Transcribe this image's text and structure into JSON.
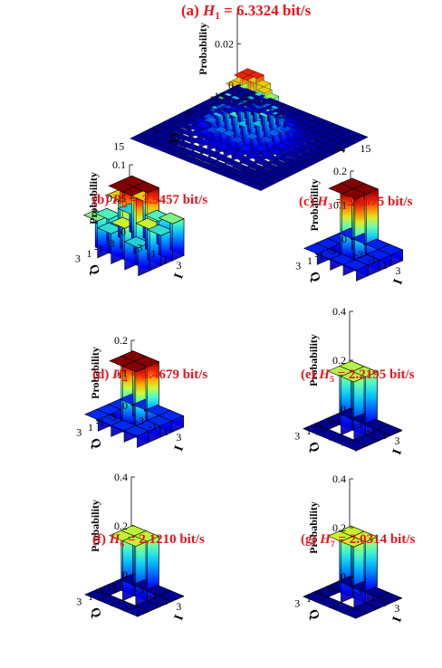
{
  "chart_data": [
    {
      "type": "bar3d",
      "panel": "(a)",
      "title_sym": "H",
      "title_sub": "1",
      "title_rest": " = 6.3324 bit/s",
      "ylabel": "Probability",
      "xlabel": "I",
      "zlabel": "Q",
      "z_ticks": [
        "0",
        "0.02"
      ],
      "z_tick_values": [
        0,
        0.02
      ],
      "zlim": [
        0,
        0.035
      ],
      "i_ticks": [
        "-15",
        "-5",
        "15"
      ],
      "q_ticks": [
        "15",
        "5",
        "-5",
        "-15"
      ],
      "grid_size": 16,
      "distribution": "gaussian",
      "peak": 0.032,
      "sigma_cells": 2.2
    },
    {
      "type": "bar3d",
      "panel": "(b)",
      "title_sym": "H",
      "title_sub": "2",
      "title_rest": " = 3.9457 bit/s",
      "ylabel": "Probability",
      "xlabel": "I",
      "zlabel": "Q",
      "z_ticks": [
        "0",
        "0.05",
        "0.1"
      ],
      "z_tick_values": [
        0,
        0.05,
        0.1
      ],
      "zlim": [
        0,
        0.1
      ],
      "i_ticks": [
        "-3",
        "-1",
        "1",
        "3"
      ],
      "q_ticks": [
        "3",
        "1",
        "-1",
        "-3"
      ],
      "grid_size": 4,
      "center": 0.1,
      "ring": [
        0.062,
        0.062,
        0.062,
        0.062,
        0.062,
        0.062,
        0.062,
        0.062,
        0.062,
        0.062,
        0.062,
        0.062
      ],
      "ring_pattern": "mixed"
    },
    {
      "type": "bar3d",
      "panel": "(c)",
      "title_sym": "H",
      "title_sub": "3",
      "title_rest": " = 3.4075 bit/s",
      "ylabel": "Probability",
      "xlabel": "I",
      "zlabel": "Q",
      "z_ticks": [
        "0",
        "0.1",
        "0.2"
      ],
      "z_tick_values": [
        0,
        0.1,
        0.2
      ],
      "zlim": [
        0,
        0.2
      ],
      "i_ticks": [
        "-3",
        "-1",
        "1",
        "3"
      ],
      "q_ticks": [
        "3",
        "1",
        "-1",
        "-3"
      ],
      "grid_size": 4,
      "center": 0.21,
      "ring": 0.032
    },
    {
      "type": "bar3d",
      "panel": "(d)",
      "title_sym": "H",
      "title_sub": "4",
      "title_rest": " = 3.4679 bit/s",
      "ylabel": "Probability",
      "xlabel": "I",
      "zlabel": "Q",
      "z_ticks": [
        "0",
        "0.1",
        "0.2"
      ],
      "z_tick_values": [
        0,
        0.1,
        0.2
      ],
      "zlim": [
        0,
        0.2
      ],
      "i_ticks": [
        "-3",
        "-1",
        "1",
        "3"
      ],
      "q_ticks": [
        "3",
        "1",
        "-1",
        "-3"
      ],
      "grid_size": 4,
      "center": 0.2,
      "ring": 0.035
    },
    {
      "type": "bar3d",
      "panel": "(e)",
      "title_sym": "H",
      "title_sub": "5",
      "title_rest": " = 2.2195 bit/s",
      "ylabel": "Probability",
      "xlabel": "I",
      "zlabel": "Q",
      "z_ticks": [
        "0",
        "0.2",
        "0.4"
      ],
      "z_tick_values": [
        0,
        0.2,
        0.4
      ],
      "zlim": [
        0,
        0.4
      ],
      "i_ticks": [
        "-3",
        "-1",
        "1",
        "3"
      ],
      "q_ticks": [
        "3",
        "1",
        "-1",
        "-3"
      ],
      "grid_size": 4,
      "center": 0.24,
      "ring": 0.003
    },
    {
      "type": "bar3d",
      "panel": "(f)",
      "title_sym": "H",
      "title_sub": "6",
      "title_rest": " = 2.1210 bit/s",
      "ylabel": "Probability",
      "xlabel": "I",
      "zlabel": "Q",
      "z_ticks": [
        "0",
        "0.2",
        "0.4"
      ],
      "z_tick_values": [
        0,
        0.2,
        0.4
      ],
      "zlim": [
        0,
        0.4
      ],
      "i_ticks": [
        "-3",
        "-1",
        "1",
        "3"
      ],
      "q_ticks": [
        "3",
        "1",
        "-1",
        "-3"
      ],
      "grid_size": 4,
      "center": 0.245,
      "ring": 0.002
    },
    {
      "type": "bar3d",
      "panel": "(g)",
      "title_sym": "H",
      "title_sub": "7",
      "title_rest": " = 2.0314 bit/s",
      "ylabel": "Probability",
      "xlabel": "I",
      "zlabel": "Q",
      "z_ticks": [
        "0",
        "0.2",
        "0.4"
      ],
      "z_tick_values": [
        0,
        0.2,
        0.4
      ],
      "zlim": [
        0,
        0.4
      ],
      "i_ticks": [
        "-3",
        "-1",
        "1",
        "3"
      ],
      "q_ticks": [
        "3",
        "1",
        "-1",
        "-3"
      ],
      "grid_size": 4,
      "center": 0.25,
      "ring": 0.001
    }
  ]
}
